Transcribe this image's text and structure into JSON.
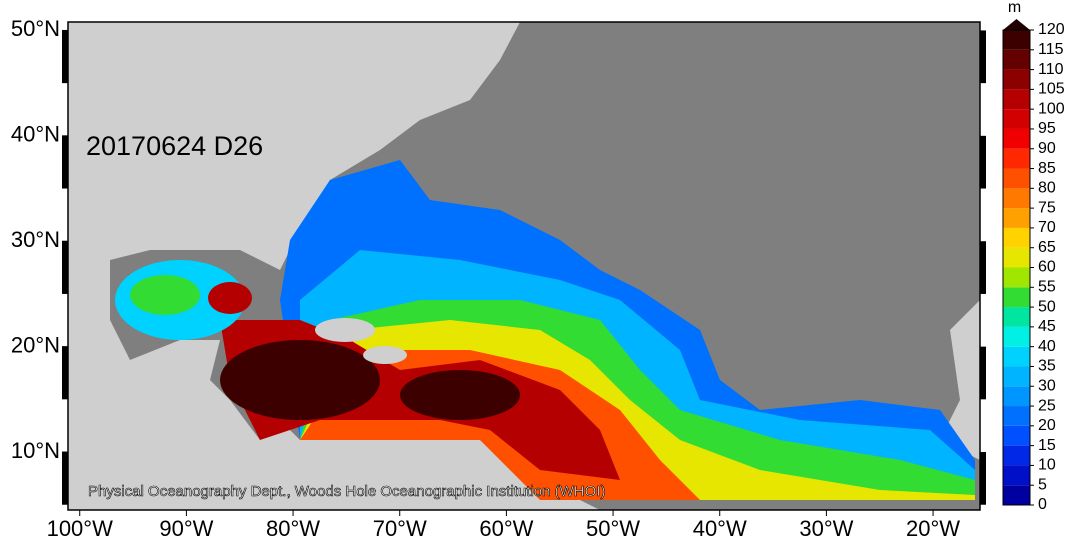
{
  "map": {
    "date_label": "20170624 D26",
    "credit": "Physical Oceanography Dept., Woods Hole Oceanographic Institution (WHOI)",
    "lonlim": [
      -101.1,
      -15.6
    ],
    "latlim": [
      4.5,
      50.8
    ],
    "lon_ticks": [
      {
        "value": -100,
        "label": "100°W"
      },
      {
        "value": -90,
        "label": "90°W"
      },
      {
        "value": -80,
        "label": "80°W"
      },
      {
        "value": -70,
        "label": "70°W"
      },
      {
        "value": -60,
        "label": "60°W"
      },
      {
        "value": -50,
        "label": "50°W"
      },
      {
        "value": -40,
        "label": "40°W"
      },
      {
        "value": -30,
        "label": "30°W"
      },
      {
        "value": -20,
        "label": "20°W"
      }
    ],
    "lat_ticks": [
      {
        "value": 10,
        "label": "10°N"
      },
      {
        "value": 20,
        "label": "20°N"
      },
      {
        "value": 30,
        "label": "30°N"
      },
      {
        "value": 40,
        "label": "40°N"
      },
      {
        "value": 50,
        "label": "50°N"
      }
    ]
  },
  "colorbar": {
    "unit": "m",
    "ticks": [
      0,
      5,
      10,
      15,
      20,
      25,
      30,
      35,
      40,
      45,
      50,
      55,
      60,
      65,
      70,
      75,
      80,
      85,
      90,
      95,
      100,
      105,
      110,
      115,
      120
    ],
    "colors": [
      "#0000a0",
      "#0010c8",
      "#0028e6",
      "#0050ff",
      "#0070ff",
      "#0096ff",
      "#00b4ff",
      "#00d2ff",
      "#00f0e6",
      "#00e6a0",
      "#32dc32",
      "#a0e600",
      "#e6e600",
      "#ffd200",
      "#ffa000",
      "#ff7800",
      "#ff5000",
      "#ff2800",
      "#f00000",
      "#d20000",
      "#b40000",
      "#8c0000",
      "#640000",
      "#3c0000"
    ]
  }
}
